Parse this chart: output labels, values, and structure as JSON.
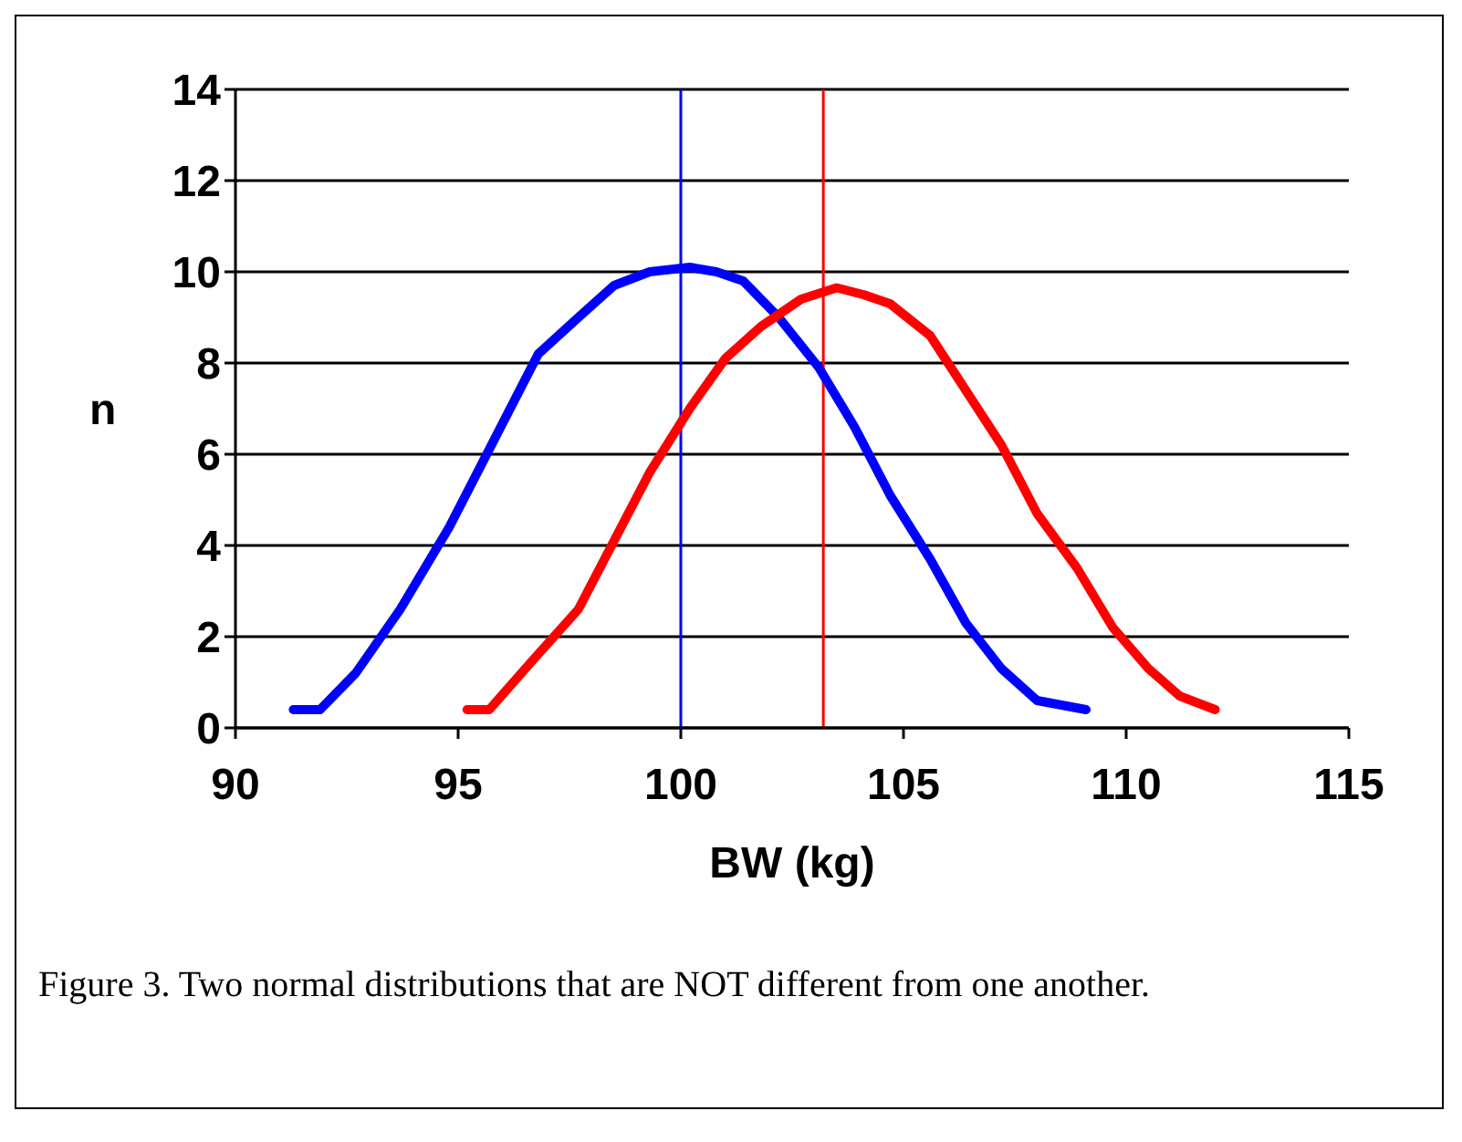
{
  "chart_data": {
    "type": "line",
    "xlabel": "BW (kg)",
    "ylabel": "n",
    "xlim": [
      90,
      115
    ],
    "xticks": [
      90,
      95,
      100,
      105,
      110,
      115
    ],
    "ylim": [
      0,
      14
    ],
    "yticks": [
      0,
      2,
      4,
      6,
      8,
      10,
      12,
      14
    ],
    "grid": "y",
    "legend": false,
    "marker": "none",
    "line_style": "solid",
    "series": [
      {
        "color": "#0000ff",
        "x": [
          91.3,
          91.9,
          92.7,
          93.7,
          94.8,
          95.8,
          96.8,
          97.7,
          98.5,
          99.3,
          100.2,
          100.8,
          101.4,
          102.2,
          103.1,
          103.9,
          104.7,
          105.6,
          106.4,
          107.2,
          108.0,
          109.1
        ],
        "values": [
          0.4,
          0.4,
          1.2,
          2.6,
          4.4,
          6.3,
          8.2,
          9.0,
          9.7,
          10.0,
          10.1,
          10.0,
          9.8,
          9.0,
          7.9,
          6.6,
          5.1,
          3.7,
          2.3,
          1.3,
          0.6,
          0.4
        ]
      },
      {
        "color": "#ff0000",
        "x": [
          95.2,
          95.7,
          96.6,
          97.7,
          98.5,
          99.3,
          100.2,
          101.0,
          101.8,
          102.7,
          103.5,
          104.1,
          104.7,
          105.6,
          106.4,
          107.2,
          108.0,
          108.9,
          109.7,
          110.5,
          111.2,
          112.0
        ],
        "values": [
          0.4,
          0.4,
          1.4,
          2.6,
          4.1,
          5.6,
          7.0,
          8.1,
          8.8,
          9.4,
          9.65,
          9.5,
          9.3,
          8.6,
          7.4,
          6.2,
          4.7,
          3.5,
          2.2,
          1.3,
          0.7,
          0.4
        ]
      }
    ],
    "ref_lines": [
      {
        "axis": "x",
        "value": 100,
        "color": "#0000ff"
      },
      {
        "axis": "x",
        "value": 103.2,
        "color": "#ff0000"
      }
    ],
    "annotations": [
      "Figure 3.  Two normal distributions that are NOT different from one another."
    ]
  }
}
